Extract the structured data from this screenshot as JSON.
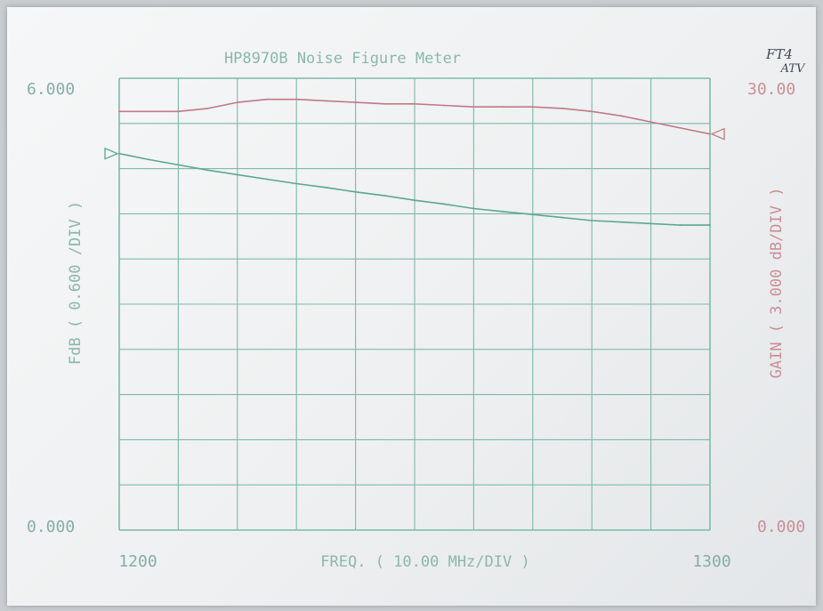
{
  "chart_data": {
    "type": "line",
    "title": "HP8970B Noise Figure Meter",
    "annotation": [
      "FT4",
      "ATV"
    ],
    "xlabel": "FREQ.  ( 10.00 MHz/DIV )",
    "x_tick_labels": [
      "1200",
      "1300"
    ],
    "xlim": [
      1200,
      1300
    ],
    "left_axis": {
      "label": "FdB  ( 0.600 /DIV )",
      "top_label": "6.000",
      "bottom_label": "0.000",
      "ylim": [
        0,
        6
      ]
    },
    "right_axis": {
      "label": "GAIN ( 3.000 dB/DIV )",
      "top_label": "30.00",
      "bottom_label": "0.000",
      "ylim": [
        0,
        30
      ]
    },
    "grid": true,
    "x_divisions": 10,
    "y_divisions": 10,
    "series": [
      {
        "axis": "right",
        "color": "#c07a86",
        "x": [
          1200,
          1205,
          1210,
          1215,
          1220,
          1225,
          1230,
          1235,
          1240,
          1245,
          1250,
          1255,
          1260,
          1265,
          1270,
          1275,
          1280,
          1285,
          1290,
          1295,
          1300
        ],
        "y": [
          27.8,
          27.8,
          27.8,
          28.0,
          28.4,
          28.6,
          28.6,
          28.5,
          28.4,
          28.3,
          28.3,
          28.2,
          28.1,
          28.1,
          28.1,
          28.0,
          27.8,
          27.5,
          27.1,
          26.7,
          26.3
        ]
      },
      {
        "axis": "left",
        "color": "#5aa890",
        "x": [
          1200,
          1205,
          1210,
          1215,
          1220,
          1225,
          1230,
          1235,
          1240,
          1245,
          1250,
          1255,
          1260,
          1265,
          1270,
          1275,
          1280,
          1285,
          1290,
          1295,
          1300
        ],
        "y": [
          5.0,
          4.92,
          4.85,
          4.78,
          4.72,
          4.66,
          4.6,
          4.55,
          4.49,
          4.44,
          4.38,
          4.33,
          4.27,
          4.23,
          4.19,
          4.15,
          4.11,
          4.09,
          4.07,
          4.05,
          4.05
        ]
      }
    ]
  }
}
